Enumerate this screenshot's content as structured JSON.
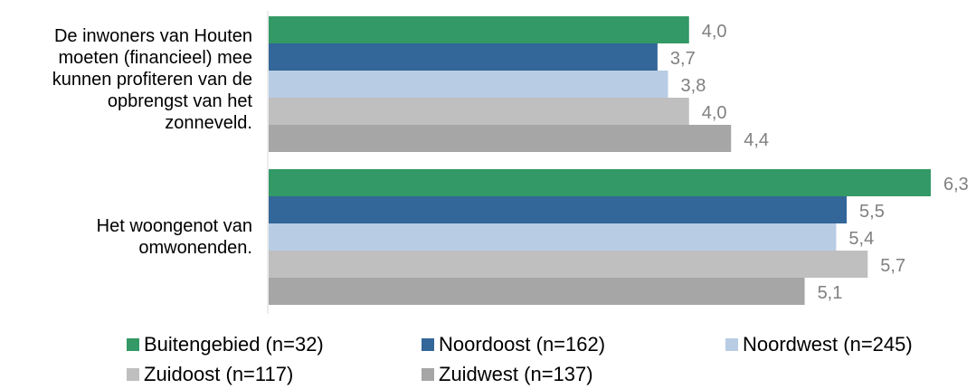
{
  "chart_data": {
    "type": "bar",
    "orientation": "horizontal",
    "categories": [
      "De inwoners van Houten moeten (financieel) mee kunnen profiteren van de opbrengst van het zonneveld.",
      "Het woongenot van omwonenden."
    ],
    "series": [
      {
        "name": "Buitengebied (n=32)",
        "color": "#339966",
        "values": [
          4.0,
          6.3
        ],
        "labels": [
          "4,0",
          "6,3"
        ]
      },
      {
        "name": "Noordoost (n=162)",
        "color": "#336699",
        "values": [
          3.7,
          5.5
        ],
        "labels": [
          "3,7",
          "5,5"
        ]
      },
      {
        "name": "Noordwest (n=245)",
        "color": "#b8cce4",
        "values": [
          3.8,
          5.4
        ],
        "labels": [
          "3,8",
          "5,4"
        ]
      },
      {
        "name": "Zuidoost (n=117)",
        "color": "#bfbfbf",
        "values": [
          4.0,
          5.7
        ],
        "labels": [
          "4,0",
          "5,7"
        ]
      },
      {
        "name": "Zuidwest (n=137)",
        "color": "#a6a6a6",
        "values": [
          4.4,
          5.1
        ],
        "labels": [
          "4,4",
          "5,1"
        ]
      }
    ],
    "xlim": [
      0,
      6.3
    ],
    "grid": false,
    "legend_position": "bottom",
    "label_color": "#808080"
  },
  "category_lines": [
    [
      "De inwoners van Houten",
      "moeten (financieel) mee",
      "kunnen profiteren van de",
      "opbrengst van het",
      "zonneveld."
    ],
    [
      "Het woongenot van",
      "omwonenden."
    ]
  ]
}
